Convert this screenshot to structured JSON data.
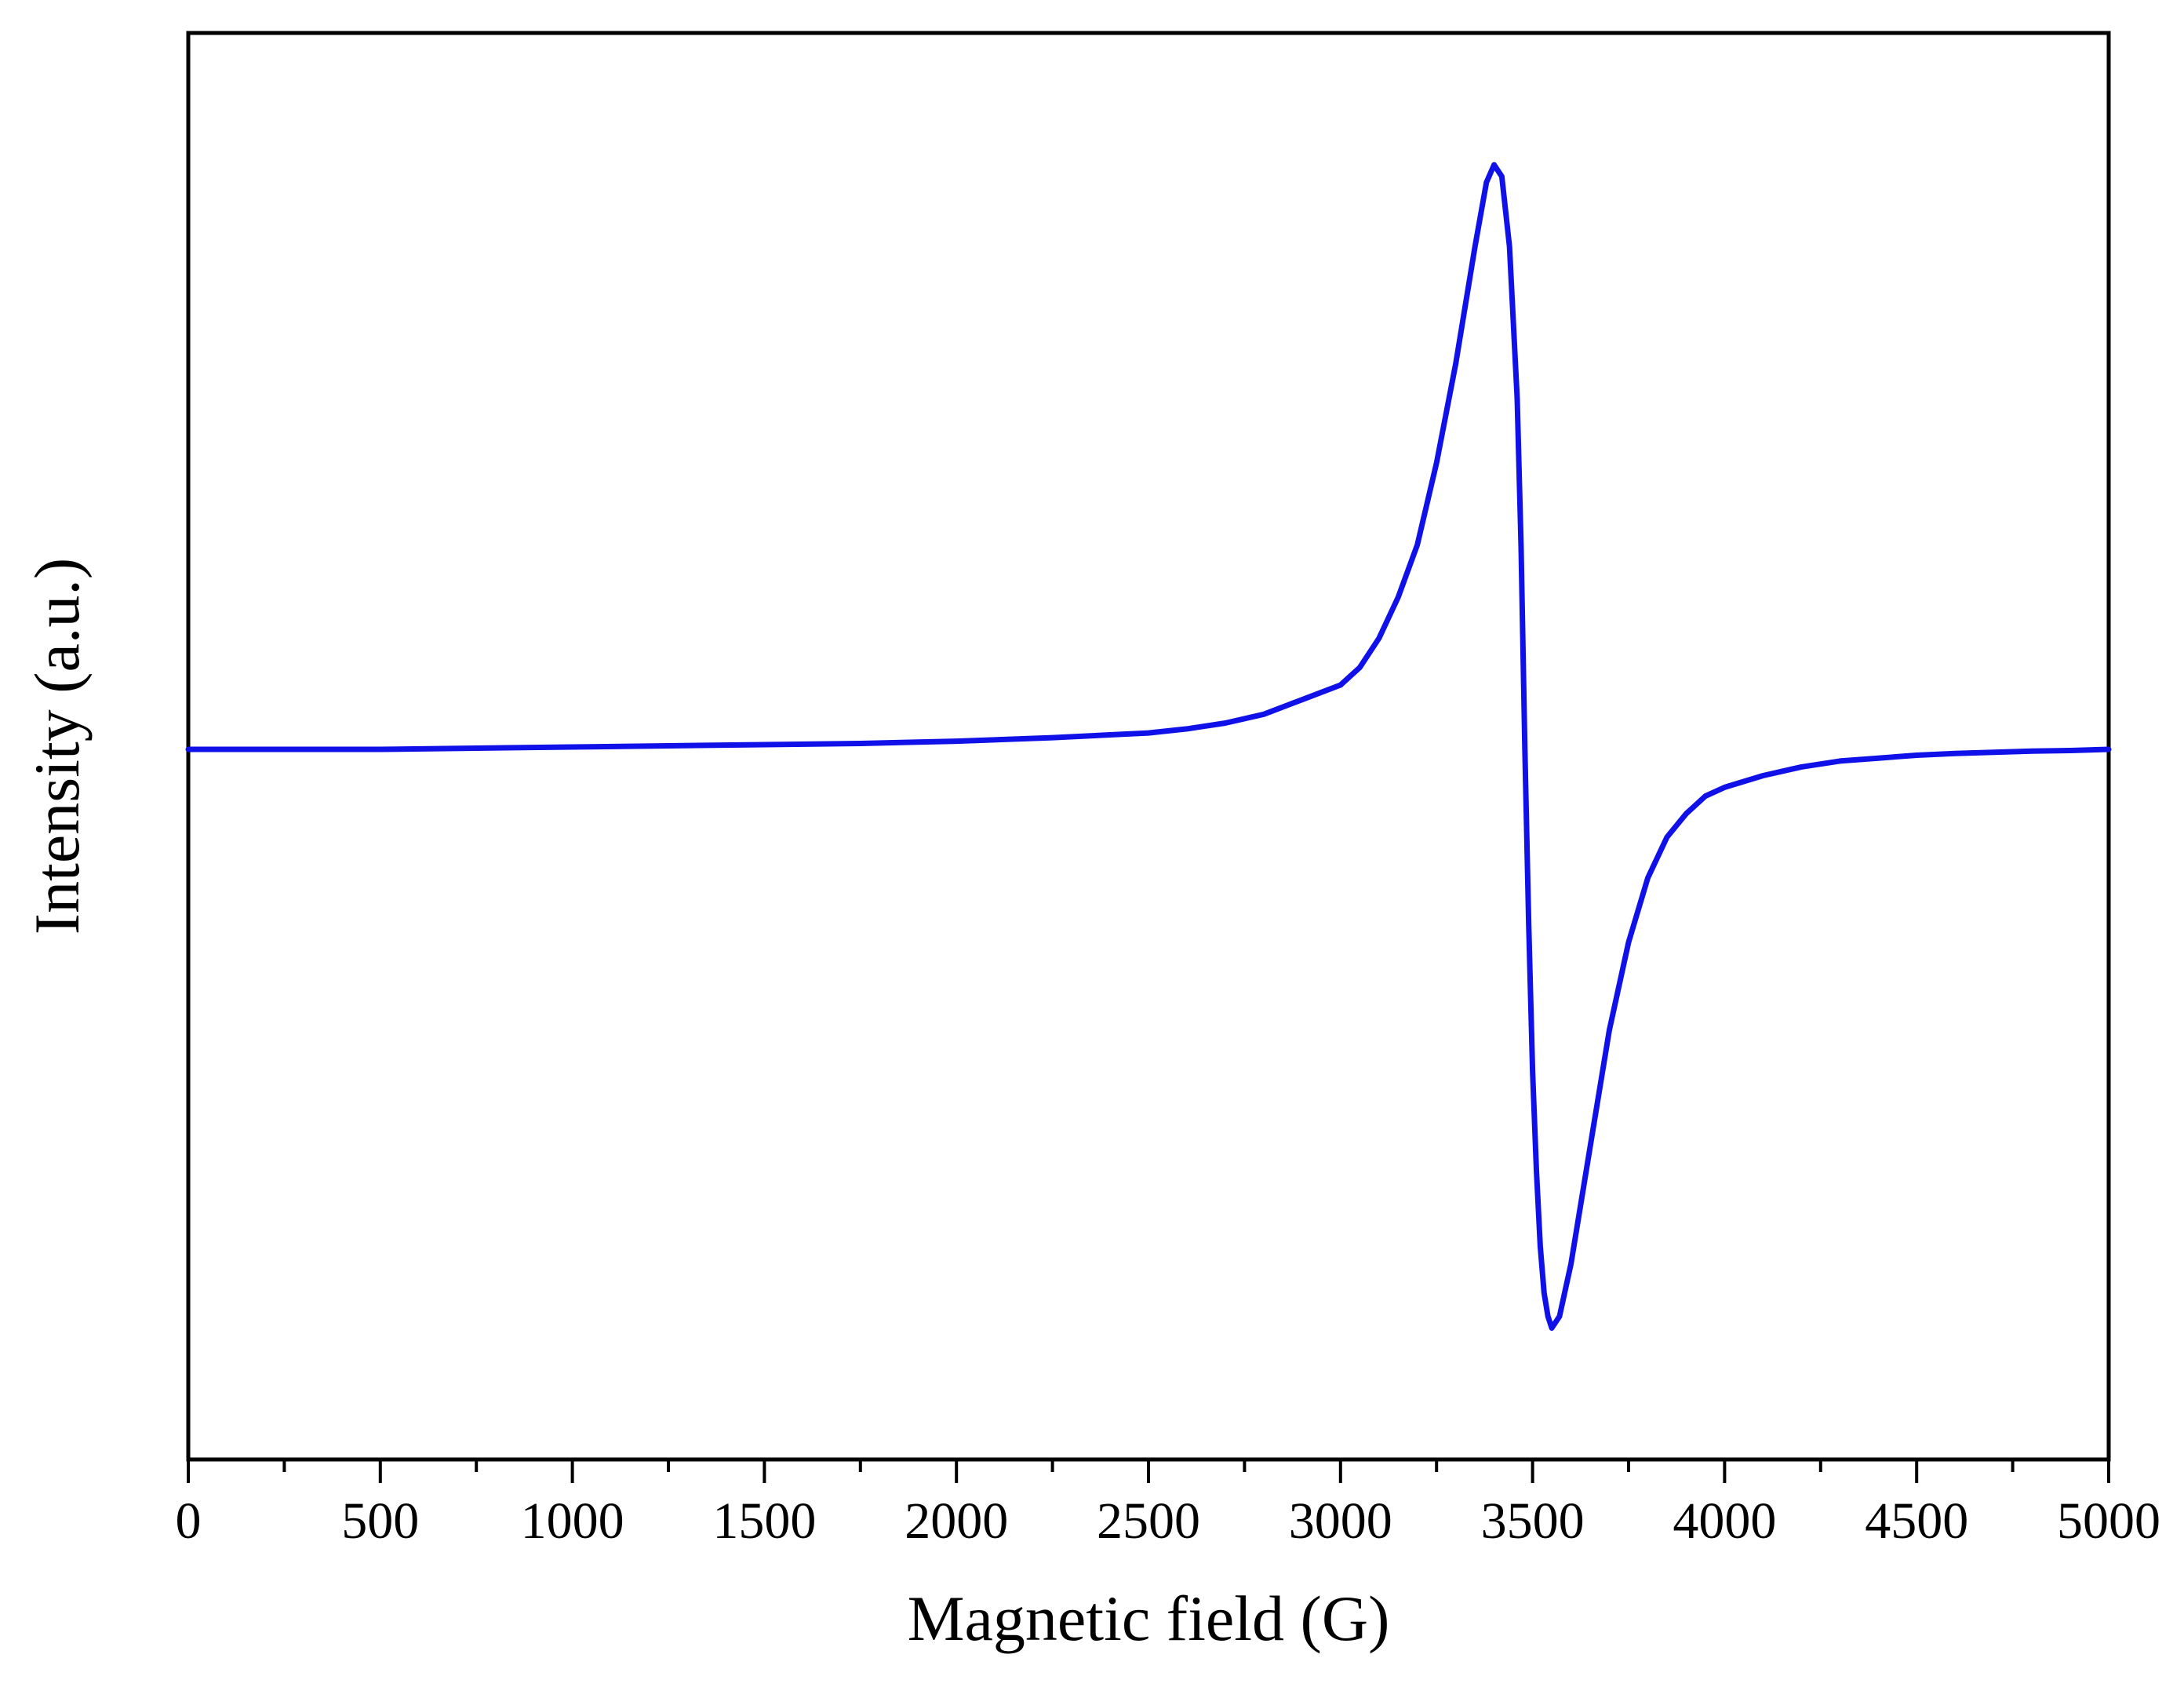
{
  "chart_data": {
    "type": "line",
    "title": "",
    "xlabel": "Magnetic field (G)",
    "ylabel": "Intensity (a.u.)",
    "xlim": [
      0,
      5000
    ],
    "ylim": [
      -1.0,
      1.0
    ],
    "x_ticks": [
      0,
      500,
      1000,
      1500,
      2000,
      2500,
      3000,
      3500,
      4000,
      4500,
      5000
    ],
    "x_minor_step": 250,
    "y_ticks_shown": false,
    "grid": false,
    "legend": "none",
    "series": [
      {
        "color": "#1010e8",
        "x": [
          0,
          250,
          500,
          750,
          1000,
          1250,
          1500,
          1750,
          2000,
          2250,
          2500,
          2600,
          2700,
          2800,
          2900,
          3000,
          3050,
          3100,
          3150,
          3200,
          3250,
          3300,
          3350,
          3380,
          3400,
          3420,
          3440,
          3460,
          3470,
          3480,
          3490,
          3500,
          3510,
          3520,
          3530,
          3540,
          3550,
          3570,
          3600,
          3650,
          3700,
          3750,
          3800,
          3850,
          3900,
          3950,
          4000,
          4100,
          4200,
          4300,
          4400,
          4500,
          4600,
          4700,
          4800,
          4900,
          5000
        ],
        "y": [
          0.0,
          0.0,
          0.0,
          0.002,
          0.004,
          0.006,
          0.008,
          0.01,
          0.014,
          0.02,
          0.028,
          0.035,
          0.045,
          0.06,
          0.085,
          0.11,
          0.14,
          0.19,
          0.26,
          0.35,
          0.49,
          0.66,
          0.86,
          0.97,
          1.0,
          0.98,
          0.86,
          0.6,
          0.35,
          0.0,
          -0.3,
          -0.55,
          -0.72,
          -0.85,
          -0.93,
          -0.97,
          -0.99,
          -0.97,
          -0.88,
          -0.68,
          -0.48,
          -0.33,
          -0.22,
          -0.15,
          -0.11,
          -0.08,
          -0.065,
          -0.045,
          -0.03,
          -0.02,
          -0.015,
          -0.01,
          -0.007,
          -0.005,
          -0.003,
          -0.002,
          0.0
        ]
      }
    ]
  }
}
